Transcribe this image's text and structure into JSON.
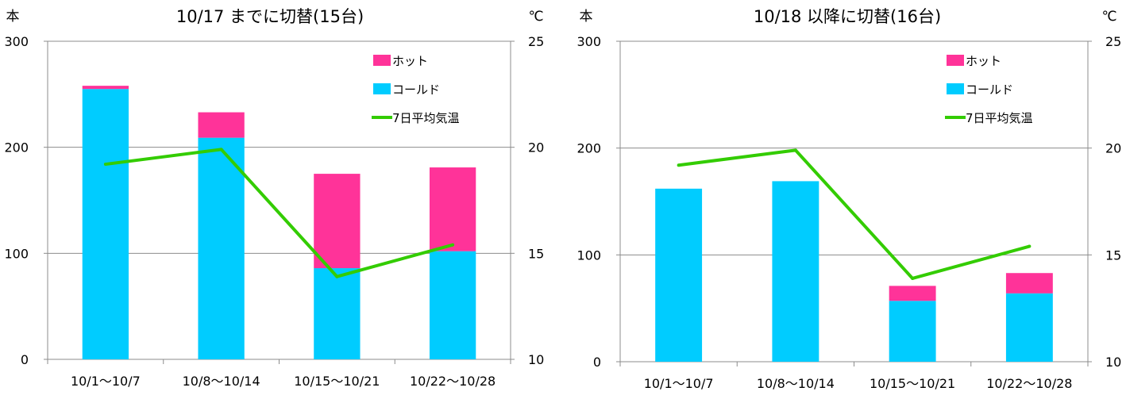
{
  "chart_data": [
    {
      "type": "bar",
      "title": "10/17 までに切替(15台)",
      "ylabel_left": "本",
      "ylabel_right": "℃",
      "categories": [
        "10/1～10/7",
        "10/8～10/14",
        "10/15～10/21",
        "10/22～10/28"
      ],
      "series": [
        {
          "name": "ホット",
          "type": "bar",
          "stacked": true,
          "color": "#FF3399",
          "values": [
            3,
            24,
            89,
            79
          ]
        },
        {
          "name": "コールド",
          "type": "bar",
          "stacked": true,
          "color": "#00CCFF",
          "values": [
            255,
            209,
            86,
            102
          ]
        },
        {
          "name": "7日平均気温",
          "type": "line",
          "axis": "right",
          "color": "#33CC00",
          "values": [
            19.2,
            19.9,
            13.9,
            15.4
          ]
        }
      ],
      "ylim_left": [
        0,
        300
      ],
      "yticks_left": [
        "0",
        "100",
        "200",
        "300"
      ],
      "ylim_right": [
        10,
        25
      ],
      "yticks_right": [
        "10",
        "15",
        "20",
        "25"
      ],
      "legend_order": [
        "ホット",
        "コールド",
        "7日平均気温"
      ],
      "legend_position": "top-right",
      "grid": true
    },
    {
      "type": "bar",
      "title": "10/18 以降に切替(16台)",
      "ylabel_left": "本",
      "ylabel_right": "℃",
      "categories": [
        "10/1～10/7",
        "10/8～10/14",
        "10/15～10/21",
        "10/22～10/28"
      ],
      "series": [
        {
          "name": "ホット",
          "type": "bar",
          "stacked": true,
          "color": "#FF3399",
          "values": [
            0,
            0,
            14,
            19
          ]
        },
        {
          "name": "コールド",
          "type": "bar",
          "stacked": true,
          "color": "#00CCFF",
          "values": [
            162,
            169,
            57,
            64
          ]
        },
        {
          "name": "7日平均気温",
          "type": "line",
          "axis": "right",
          "color": "#33CC00",
          "values": [
            19.2,
            19.9,
            13.9,
            15.4
          ]
        }
      ],
      "ylim_left": [
        0,
        300
      ],
      "yticks_left": [
        "0",
        "100",
        "200",
        "300"
      ],
      "ylim_right": [
        10,
        25
      ],
      "yticks_right": [
        "10",
        "15",
        "20",
        "25"
      ],
      "legend_order": [
        "ホット",
        "コールド",
        "7日平均気温"
      ],
      "legend_position": "top-right",
      "grid": true
    }
  ]
}
